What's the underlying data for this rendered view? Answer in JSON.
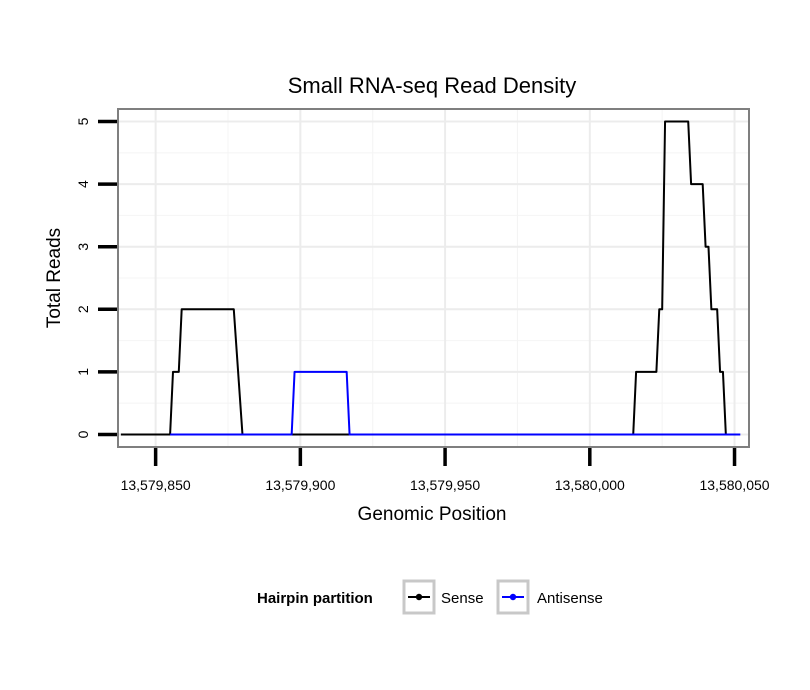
{
  "chart_data": {
    "type": "line",
    "title": "Small RNA-seq Read Density",
    "xlabel": "Genomic Position",
    "ylabel": "Total Reads",
    "xlim": [
      13579837,
      13580055
    ],
    "ylim": [
      -0.2,
      5.2
    ],
    "x_ticks": [
      13579850,
      13579900,
      13579950,
      13580000,
      13580050
    ],
    "x_tick_labels": [
      "13,579,850",
      "13,579,900",
      "13,579,950",
      "13,580,000",
      "13,580,050"
    ],
    "y_ticks": [
      0,
      1,
      2,
      3,
      4,
      5
    ],
    "y_tick_labels": [
      "0",
      "1",
      "2",
      "3",
      "4",
      "5"
    ],
    "grid": true,
    "legend": {
      "title": "Hairpin partition",
      "position": "bottom"
    },
    "series": [
      {
        "name": "Sense",
        "color": "#000000",
        "x": [
          13579838,
          13579855,
          13579856,
          13579858,
          13579859,
          13579877,
          13579880,
          13580015,
          13580016,
          13580023,
          13580024,
          13580025,
          13580026,
          13580030,
          13580034,
          13580035,
          13580039,
          13580040,
          13580041,
          13580042,
          13580044,
          13580045,
          13580046,
          13580047
        ],
        "values": [
          0,
          0,
          1,
          1,
          2,
          2,
          0,
          0,
          1,
          1,
          2,
          2,
          5,
          5,
          5,
          4,
          4,
          3,
          3,
          2,
          2,
          1,
          1,
          0
        ]
      },
      {
        "name": "Antisense",
        "color": "#0000ff",
        "x": [
          13579855,
          13579897,
          13579898,
          13579916,
          13579917,
          13580052
        ],
        "values": [
          0,
          0,
          1,
          1,
          0,
          0
        ]
      }
    ]
  }
}
